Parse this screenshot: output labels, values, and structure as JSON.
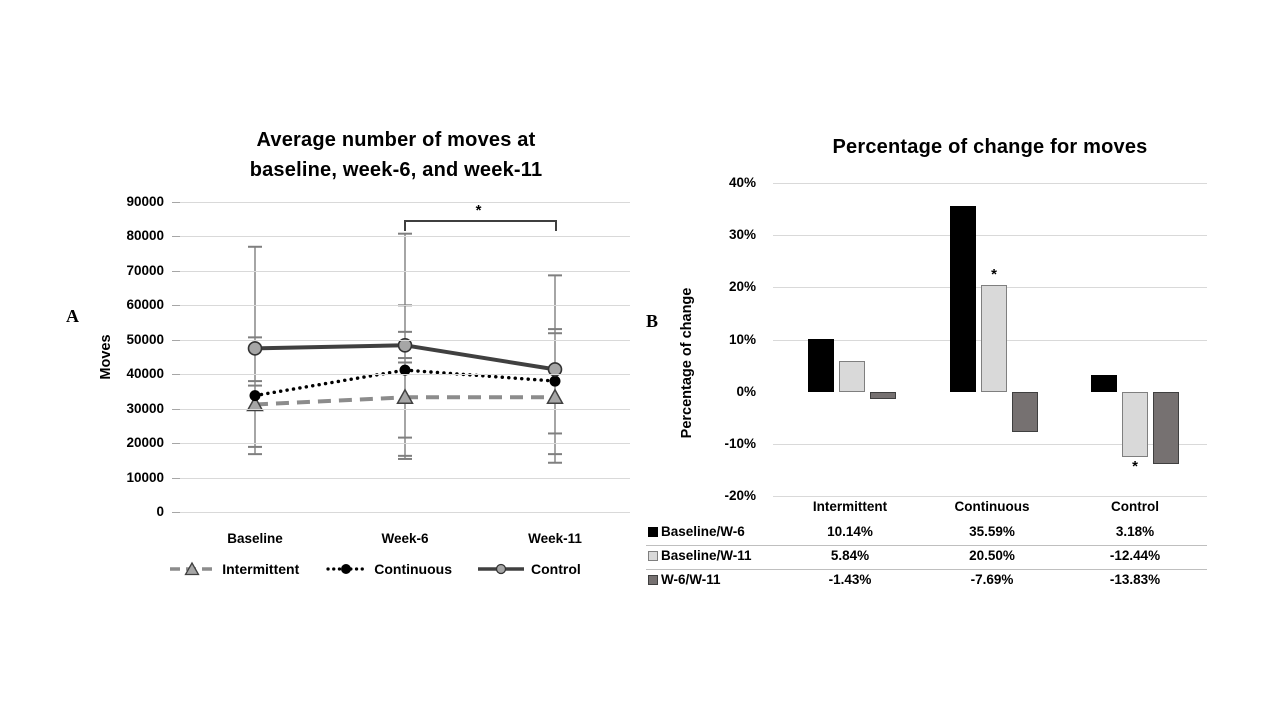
{
  "page": {
    "background": "#ffffff"
  },
  "panelA": {
    "panel_label": "A",
    "title_line1": "Average number of moves at",
    "title_line2": "baseline, week-6, and week-11",
    "y_axis_label": "Moves",
    "sig_symbol": "*",
    "legend_items": [
      "Intermittent",
      "Continuous",
      "Control"
    ]
  },
  "panelB": {
    "panel_label": "B",
    "title": "Percentage of change for moves",
    "y_axis_label": "Percentage of change",
    "table": {
      "headers": [
        "Intermittent",
        "Continuous",
        "Control"
      ],
      "rows": [
        {
          "label": "Baseline/W-6",
          "swatch_color": "#000000",
          "swatch_border": "#000000",
          "values": [
            "10.14%",
            "35.59%",
            "3.18%"
          ]
        },
        {
          "label": "Baseline/W-11",
          "swatch_color": "#d9d9d9",
          "swatch_border": "#7f7f7f",
          "values": [
            "5.84%",
            "20.50%",
            "-12.44%"
          ]
        },
        {
          "label": "W-6/W-11",
          "swatch_color": "#767171",
          "swatch_border": "#3f3f3f",
          "values": [
            "-1.43%",
            "-7.69%",
            "-13.83%"
          ]
        }
      ]
    }
  },
  "chart_data": [
    {
      "type": "line",
      "title": "Average number of moves at baseline, week-6, and week-11",
      "xlabel": "",
      "ylabel": "Moves",
      "categories": [
        "Baseline",
        "Week-6",
        "Week-11"
      ],
      "ylim": [
        0,
        90000
      ],
      "ytick_labels": [
        "0",
        "10000",
        "20000",
        "30000",
        "40000",
        "50000",
        "60000",
        "70000",
        "80000",
        "90000"
      ],
      "grid": true,
      "legend_position": "bottom",
      "series": [
        {
          "name": "Intermittent",
          "values": [
            31200,
            33300,
            33300
          ],
          "line_style": "dashed",
          "color": "#8c8c8c",
          "marker": "triangle",
          "marker_fill": "#a6a6a6",
          "marker_edge": "#404040"
        },
        {
          "name": "Continuous",
          "values": [
            33800,
            41200,
            38000
          ],
          "line_style": "dotted",
          "color": "#000000",
          "marker": "circle",
          "marker_fill": "#000000",
          "marker_edge": "#000000"
        },
        {
          "name": "Control",
          "values": [
            47500,
            48400,
            41400
          ],
          "line_style": "solid",
          "color": "#404040",
          "marker": "circle",
          "marker_fill": "#a6a6a6",
          "marker_edge": "#333333"
        }
      ],
      "error_bars": [
        {
          "category": "Baseline",
          "whisker": [
            16800,
            77000
          ],
          "caps": [
            77000,
            50700,
            38000,
            36700,
            18900,
            16800
          ]
        },
        {
          "category": "Week-6",
          "whisker": [
            15400,
            80800
          ],
          "caps": [
            80800,
            60000,
            52300,
            44700,
            43400,
            21600,
            16300,
            15400
          ]
        },
        {
          "category": "Week-11",
          "whisker": [
            14300,
            68700
          ],
          "caps": [
            68700,
            53100,
            51900,
            22800,
            16800,
            14300
          ]
        }
      ],
      "annotation": {
        "symbol": "*",
        "between": [
          "Week-6",
          "Week-11"
        ],
        "y_value": 84500
      }
    },
    {
      "type": "bar",
      "title": "Percentage of change for moves",
      "xlabel": "",
      "ylabel": "Percentage of change",
      "categories": [
        "Intermittent",
        "Continuous",
        "Control"
      ],
      "ylim": [
        -20,
        40
      ],
      "ytick_labels": [
        "40%",
        "30%",
        "20%",
        "10%",
        "0%",
        "-10%",
        "-20%"
      ],
      "ytick_values": [
        40,
        30,
        20,
        10,
        0,
        -10,
        -20
      ],
      "grid": true,
      "series": [
        {
          "name": "Baseline/W-6",
          "values": [
            10.14,
            35.59,
            3.18
          ],
          "color": "#000000",
          "border": "#000000"
        },
        {
          "name": "Baseline/W-11",
          "values": [
            5.84,
            20.5,
            -12.44
          ],
          "color": "#d9d9d9",
          "border": "#7f7f7f"
        },
        {
          "name": "W-6/W-11",
          "values": [
            -1.43,
            -7.69,
            -13.83
          ],
          "color": "#767171",
          "border": "#3f3f3f"
        }
      ],
      "annotations": [
        {
          "symbol": "*",
          "category_index": 1,
          "series_index": 1,
          "position": "above"
        },
        {
          "symbol": "*",
          "category_index": 2,
          "series_index": 1,
          "position": "below"
        }
      ]
    }
  ]
}
